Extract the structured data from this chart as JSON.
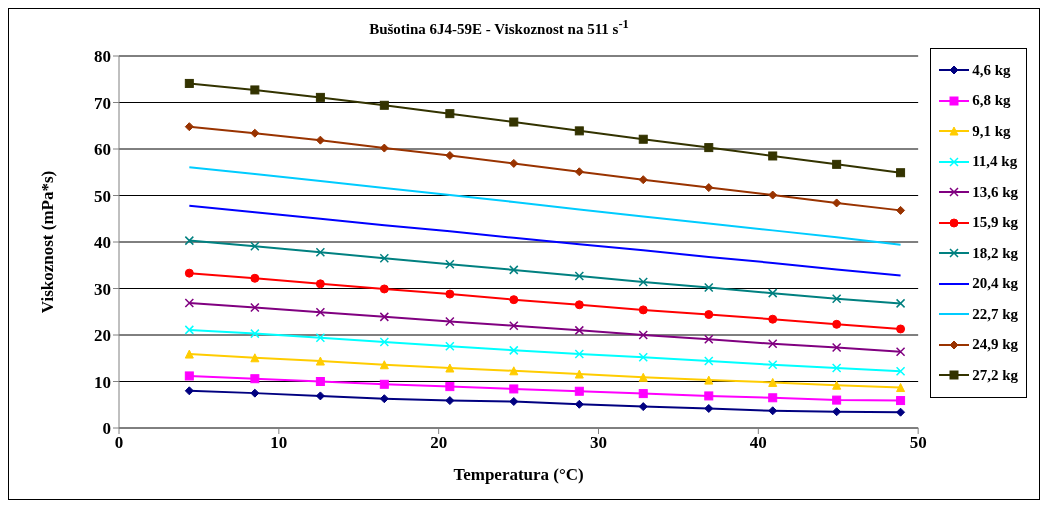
{
  "chart_data": {
    "type": "line",
    "title": "Bušotina 6J4-59E - Viskoznost na 511 s$^{-1}$",
    "xlabel": "Temperatura (°C)",
    "ylabel": "Viskoznost  (mPa*s)",
    "x": [
      4.4,
      8.5,
      12.6,
      16.6,
      20.7,
      24.7,
      28.8,
      32.8,
      36.9,
      40.9,
      44.9,
      48.9
    ],
    "xlim": [
      0,
      50
    ],
    "xticks": [
      0,
      10,
      20,
      30,
      40,
      50
    ],
    "ylim": [
      0,
      80
    ],
    "yticks": [
      0,
      10,
      20,
      30,
      40,
      50,
      60,
      70,
      80
    ],
    "grid": "y",
    "legend": "right",
    "series": [
      {
        "name": "4,6 kg",
        "color": "#000080",
        "marker": "diamond",
        "values": [
          8.0,
          7.5,
          6.9,
          6.3,
          5.9,
          5.7,
          5.1,
          4.6,
          4.2,
          3.7,
          3.5,
          3.4
        ]
      },
      {
        "name": "6,8 kg",
        "color": "#ff00ff",
        "marker": "square",
        "values": [
          11.2,
          10.6,
          10.0,
          9.4,
          8.9,
          8.4,
          7.9,
          7.4,
          6.9,
          6.5,
          6.0,
          5.9
        ]
      },
      {
        "name": "9,1 kg",
        "color": "#ffcc00",
        "marker": "triangle",
        "values": [
          15.9,
          15.1,
          14.4,
          13.6,
          12.9,
          12.3,
          11.6,
          10.9,
          10.3,
          9.8,
          9.2,
          8.7
        ]
      },
      {
        "name": "11,4 kg",
        "color": "#00ffff",
        "marker": "cross",
        "values": [
          21.1,
          20.3,
          19.4,
          18.5,
          17.6,
          16.7,
          15.9,
          15.2,
          14.4,
          13.6,
          12.9,
          12.2
        ]
      },
      {
        "name": "13,6 kg",
        "color": "#800080",
        "marker": "cross",
        "values": [
          26.9,
          25.9,
          24.9,
          23.9,
          22.9,
          22.0,
          21.0,
          20.0,
          19.1,
          18.1,
          17.3,
          16.4
        ]
      },
      {
        "name": "15,9 kg",
        "color": "#ff0000",
        "marker": "circle",
        "values": [
          33.3,
          32.2,
          31.0,
          29.9,
          28.8,
          27.6,
          26.5,
          25.4,
          24.4,
          23.4,
          22.3,
          21.3
        ]
      },
      {
        "name": "18,2 kg",
        "color": "#008080",
        "marker": "cross",
        "values": [
          40.3,
          39.1,
          37.8,
          36.5,
          35.2,
          34.0,
          32.7,
          31.4,
          30.2,
          29.0,
          27.8,
          26.8
        ]
      },
      {
        "name": "20,4 kg",
        "color": "#0000ff",
        "marker": "none",
        "values": [
          47.8,
          46.4,
          45.0,
          43.6,
          42.3,
          40.9,
          39.5,
          38.2,
          36.8,
          35.5,
          34.1,
          32.8
        ]
      },
      {
        "name": "22,7 kg",
        "color": "#00ccff",
        "marker": "none",
        "values": [
          56.1,
          54.6,
          53.1,
          51.6,
          50.1,
          48.6,
          47.0,
          45.5,
          44.0,
          42.5,
          41.0,
          39.4
        ]
      },
      {
        "name": "24,9 kg",
        "color": "#993300",
        "marker": "diamond",
        "values": [
          64.8,
          63.4,
          61.9,
          60.2,
          58.6,
          56.9,
          55.1,
          53.4,
          51.7,
          50.1,
          48.4,
          46.8
        ]
      },
      {
        "name": "27,2 kg",
        "color": "#333300",
        "marker": "square",
        "values": [
          74.1,
          72.7,
          71.1,
          69.4,
          67.6,
          65.8,
          63.9,
          62.1,
          60.3,
          58.5,
          56.7,
          54.9
        ]
      }
    ]
  }
}
